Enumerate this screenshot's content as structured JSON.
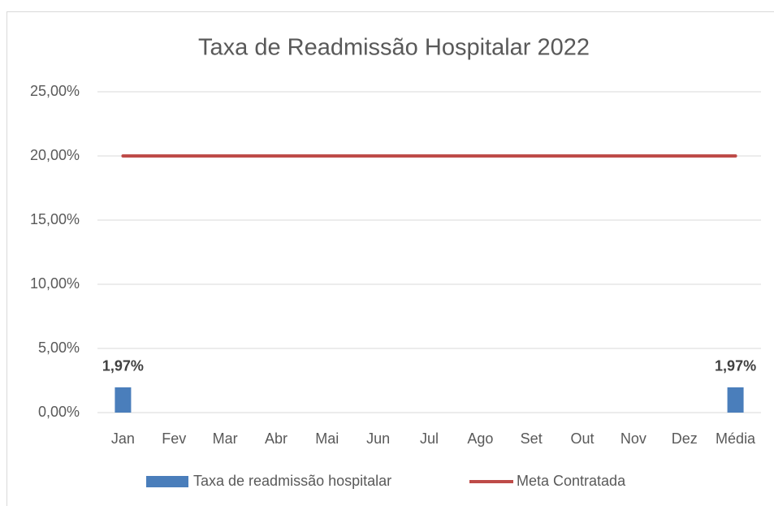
{
  "chart_data": {
    "type": "bar",
    "title": "Taxa de Readmissão Hospitalar 2022",
    "categories": [
      "Jan",
      "Fev",
      "Mar",
      "Abr",
      "Mai",
      "Jun",
      "Jul",
      "Ago",
      "Set",
      "Out",
      "Nov",
      "Dez",
      "Média"
    ],
    "series": [
      {
        "name": "Taxa de readmissão hospitalar",
        "type": "bar",
        "color": "#4a7ebb",
        "values": [
          1.97,
          null,
          null,
          null,
          null,
          null,
          null,
          null,
          null,
          null,
          null,
          null,
          1.97
        ],
        "value_labels": [
          "1,97%",
          null,
          null,
          null,
          null,
          null,
          null,
          null,
          null,
          null,
          null,
          null,
          "1,97%"
        ]
      },
      {
        "name": "Meta Contratada",
        "type": "line",
        "color": "#be4b48",
        "values": [
          20,
          20,
          20,
          20,
          20,
          20,
          20,
          20,
          20,
          20,
          20,
          20,
          20
        ]
      }
    ],
    "ylim": [
      0,
      25
    ],
    "yticks": [
      {
        "value": 0,
        "label": "0,00%"
      },
      {
        "value": 5,
        "label": "5,00%"
      },
      {
        "value": 10,
        "label": "10,00%"
      },
      {
        "value": 15,
        "label": "15,00%"
      },
      {
        "value": 20,
        "label": "20,00%"
      },
      {
        "value": 25,
        "label": "25,00%"
      }
    ],
    "grid": true,
    "legend": "bottom"
  }
}
